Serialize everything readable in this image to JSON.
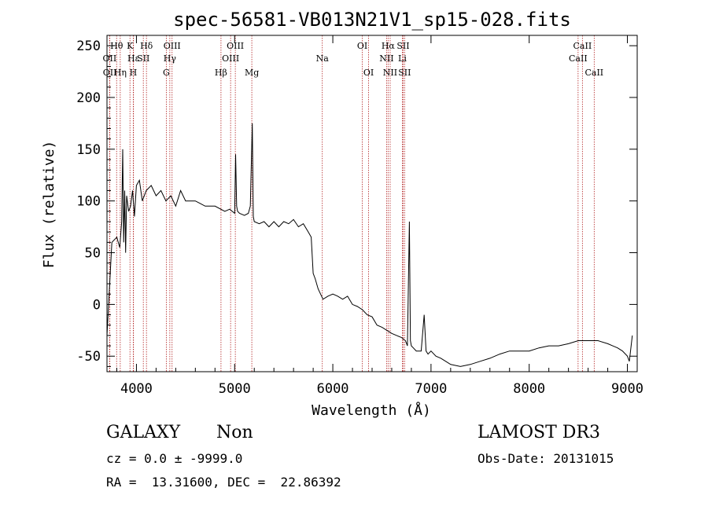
{
  "chart_data": {
    "type": "line",
    "title": "spec-56581-VB013N21V1_sp15-028.fits",
    "xlabel": "Wavelength (Å)",
    "ylabel": "Flux (relative)",
    "xlim": [
      3700,
      9100
    ],
    "ylim": [
      -65,
      260
    ],
    "x_ticks": [
      4000,
      5000,
      6000,
      7000,
      8000,
      9000
    ],
    "y_ticks": [
      -50,
      0,
      50,
      100,
      150,
      200,
      250
    ],
    "grid": false,
    "series": [
      {
        "name": "flux",
        "color": "#000000",
        "x": [
          3700,
          3750,
          3800,
          3830,
          3850,
          3860,
          3870,
          3880,
          3890,
          3900,
          3920,
          3940,
          3960,
          3980,
          4000,
          4030,
          4060,
          4100,
          4150,
          4200,
          4250,
          4300,
          4350,
          4400,
          4450,
          4500,
          4600,
          4700,
          4800,
          4900,
          4950,
          5000,
          5010,
          5020,
          5030,
          5050,
          5100,
          5140,
          5160,
          5180,
          5190,
          5200,
          5250,
          5300,
          5350,
          5400,
          5450,
          5500,
          5550,
          5600,
          5650,
          5700,
          5750,
          5780,
          5800,
          5820,
          5850,
          5900,
          5950,
          6000,
          6050,
          6100,
          6150,
          6200,
          6250,
          6300,
          6350,
          6400,
          6450,
          6500,
          6550,
          6600,
          6650,
          6700,
          6740,
          6760,
          6780,
          6790,
          6800,
          6820,
          6850,
          6900,
          6930,
          6950,
          6970,
          7000,
          7050,
          7100,
          7150,
          7200,
          7300,
          7400,
          7500,
          7600,
          7700,
          7800,
          7900,
          8000,
          8100,
          8200,
          8300,
          8400,
          8500,
          8600,
          8700,
          8800,
          8850,
          8900,
          8950,
          9000,
          9020,
          9050
        ],
        "y": [
          -30,
          60,
          65,
          55,
          80,
          150,
          60,
          110,
          50,
          105,
          90,
          95,
          110,
          85,
          115,
          120,
          100,
          110,
          115,
          105,
          110,
          100,
          105,
          95,
          110,
          100,
          100,
          95,
          95,
          90,
          92,
          88,
          145,
          95,
          90,
          88,
          86,
          88,
          95,
          175,
          85,
          80,
          78,
          80,
          75,
          80,
          75,
          80,
          78,
          82,
          75,
          78,
          70,
          65,
          30,
          25,
          15,
          5,
          8,
          10,
          8,
          5,
          8,
          0,
          -2,
          -5,
          -10,
          -12,
          -20,
          -22,
          -25,
          -28,
          -30,
          -32,
          -35,
          -40,
          80,
          -35,
          -40,
          -42,
          -45,
          -45,
          -10,
          -45,
          -48,
          -45,
          -50,
          -52,
          -55,
          -58,
          -60,
          -58,
          -55,
          -52,
          -48,
          -45,
          -45,
          -45,
          -42,
          -40,
          -40,
          -38,
          -35,
          -35,
          -35,
          -38,
          -40,
          -42,
          -45,
          -50,
          -55,
          -30
        ]
      }
    ],
    "lines": {
      "top_row1": [
        {
          "label": "Hθ",
          "x": 3798
        },
        {
          "label": "K",
          "x": 3934
        },
        {
          "label": "Hδ",
          "x": 4102
        },
        {
          "label": "OIII",
          "x": 4363
        },
        {
          "label": "OIII",
          "x": 5007
        },
        {
          "label": "OI",
          "x": 6300
        },
        {
          "label": "Hα",
          "x": 6563
        },
        {
          "label": "SII",
          "x": 6716
        },
        {
          "label": "CaII",
          "x": 8542
        }
      ],
      "top_row2": [
        {
          "label": "OII",
          "x": 3727
        },
        {
          "label": "Hε",
          "x": 3970
        },
        {
          "label": "SII",
          "x": 4070
        },
        {
          "label": "Hγ",
          "x": 4340
        },
        {
          "label": "OIII",
          "x": 4959
        },
        {
          "label": "Na",
          "x": 5893
        },
        {
          "label": "NII",
          "x": 6548
        },
        {
          "label": "Li",
          "x": 6708
        },
        {
          "label": "CaII",
          "x": 8498
        }
      ],
      "top_row3": [
        {
          "label": "OII",
          "x": 3729
        },
        {
          "label": "Hη",
          "x": 3835
        },
        {
          "label": "H",
          "x": 3968
        },
        {
          "label": "G",
          "x": 4304
        },
        {
          "label": "Hβ",
          "x": 4861
        },
        {
          "label": "Mg",
          "x": 5175
        },
        {
          "label": "OI",
          "x": 6364
        },
        {
          "label": "NII",
          "x": 6584
        },
        {
          "label": "SII",
          "x": 6731
        },
        {
          "label": "CaII",
          "x": 8662
        }
      ]
    },
    "redshift_marker_note": "red dotted vertical lines mark emission/absorption line positions"
  },
  "info": {
    "class": "GALAXY",
    "subclass": "Non",
    "survey": "LAMOST DR3",
    "cz": "cz = 0.0 ± -9999.0",
    "obs_date": "Obs-Date: 20131015",
    "radec": "RA =  13.31600, DEC =  22.86392"
  },
  "colors": {
    "marker_lines": "#b22222",
    "spectrum": "#000000",
    "axes": "#000000"
  }
}
